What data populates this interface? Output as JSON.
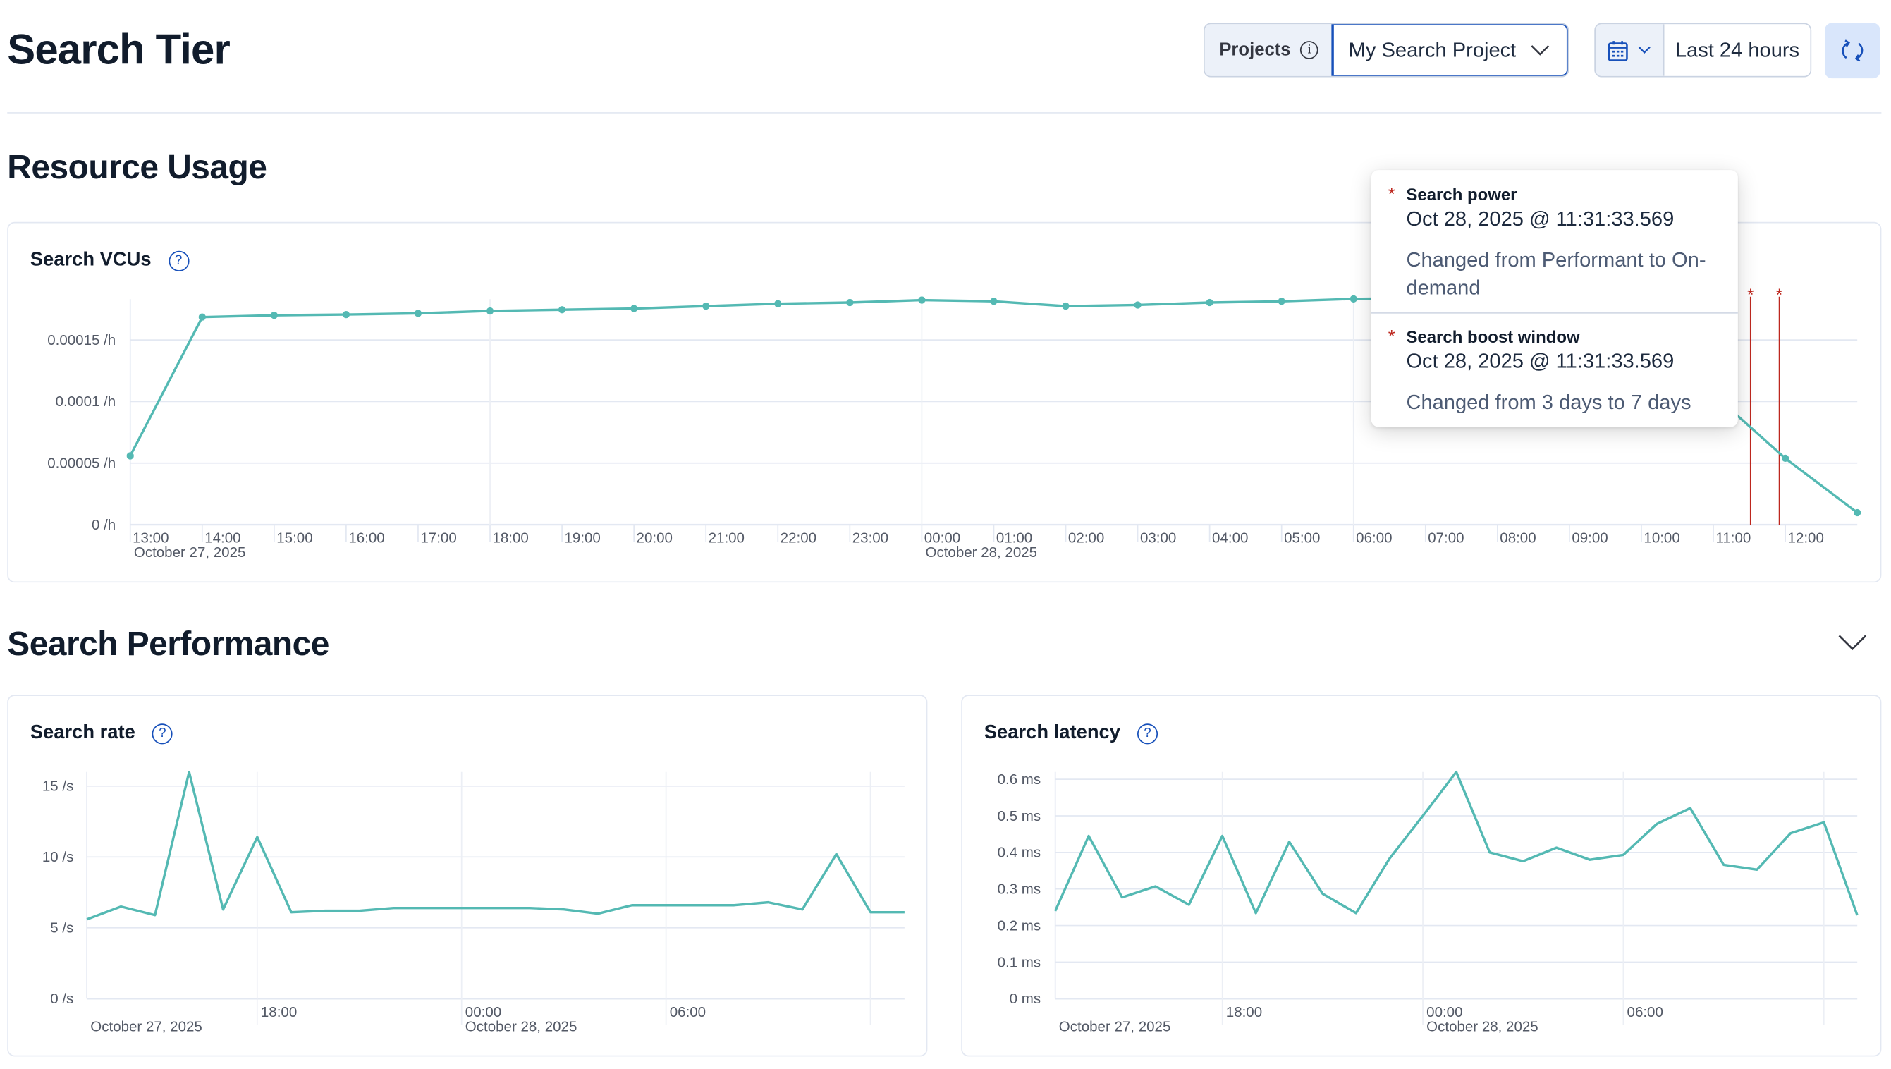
{
  "header": {
    "title": "Search Tier",
    "projects_label": "Projects",
    "project_select_value": "My Search Project",
    "time_range": "Last 24 hours",
    "icons": {
      "info": "info-icon",
      "chevron": "chevron-down-icon",
      "calendar": "calendar-icon",
      "refresh": "refresh-icon"
    }
  },
  "resource_usage": {
    "title": "Resource Usage",
    "panel_title": "Search VCUs"
  },
  "search_performance": {
    "title": "Search Performance",
    "rate_title": "Search rate",
    "latency_title": "Search latency"
  },
  "tooltip": {
    "items": [
      {
        "marker": "*",
        "name": "Search power",
        "time": "Oct 28, 2025 @ 11:31:33.569",
        "description": "Changed from Performant to On-demand"
      },
      {
        "marker": "*",
        "name": "Search boost window",
        "time": "Oct 28, 2025 @ 11:31:33.569",
        "description": "Changed from 3 days to 7 days"
      }
    ]
  },
  "colors": {
    "series": "#54b9b3",
    "annotation": "#bd271e",
    "accent": "#1750ba",
    "grid": "#e3e8f2"
  },
  "chart_data": [
    {
      "type": "line",
      "title": "Search VCUs",
      "x": [
        "13:00",
        "14:00",
        "15:00",
        "16:00",
        "17:00",
        "18:00",
        "19:00",
        "20:00",
        "21:00",
        "22:00",
        "23:00",
        "00:00",
        "01:00",
        "02:00",
        "03:00",
        "04:00",
        "05:00",
        "06:00",
        "07:00",
        "08:00",
        "09:00",
        "10:00",
        "11:00",
        "12:00",
        "13:00"
      ],
      "y": [
        5.59e-05,
        0.0001686,
        0.00017,
        0.0001706,
        0.0001716,
        0.0001735,
        0.0001745,
        0.0001755,
        0.0001775,
        0.0001794,
        0.0001804,
        0.0001824,
        0.0001814,
        0.0001775,
        0.0001784,
        0.0001804,
        0.0001814,
        0.0001833,
        0.000184,
        0.000185,
        0.000186,
        0.000186,
        0.000106,
        5.39e-05,
        9.8e-06
      ],
      "markers": true,
      "x_tick_labels": [
        "13:00",
        "14:00",
        "15:00",
        "16:00",
        "17:00",
        "18:00",
        "19:00",
        "20:00",
        "21:00",
        "22:00",
        "23:00",
        "00:00",
        "01:00",
        "02:00",
        "03:00",
        "04:00",
        "05:00",
        "06:00",
        "07:00",
        "08:00",
        "09:00",
        "10:00",
        "11:00",
        "12:00"
      ],
      "date_labels": [
        {
          "at": "13:00",
          "text": "October 27, 2025"
        },
        {
          "at": "00:00",
          "text": "October 28, 2025"
        }
      ],
      "y_ticks": [
        {
          "value": 0,
          "label": "0 /h"
        },
        {
          "value": 5e-05,
          "label": "0.00005 /h"
        },
        {
          "value": 0.0001,
          "label": "0.0001 /h"
        },
        {
          "value": 0.00015,
          "label": "0.00015 /h"
        }
      ],
      "ylim": [
        0,
        0.00019
      ],
      "annotations": [
        {
          "time": "11:31",
          "marker": "*"
        },
        {
          "time": "11:55",
          "marker": "*"
        }
      ],
      "grid": true
    },
    {
      "type": "line",
      "title": "Search rate",
      "x": [
        "13:00",
        "14:00",
        "15:00",
        "16:00",
        "17:00",
        "18:00",
        "19:00",
        "20:00",
        "21:00",
        "22:00",
        "23:00",
        "00:00",
        "01:00",
        "02:00",
        "03:00",
        "04:00",
        "05:00",
        "06:00",
        "07:00",
        "08:00",
        "09:00",
        "10:00",
        "11:00",
        "12:00",
        "13:00"
      ],
      "y": [
        5.6,
        6.5,
        5.9,
        16.0,
        6.3,
        11.4,
        6.1,
        6.2,
        6.2,
        6.4,
        6.4,
        6.4,
        6.4,
        6.4,
        6.3,
        6.0,
        6.6,
        6.6,
        6.6,
        6.6,
        6.8,
        6.3,
        10.2,
        6.1,
        6.1
      ],
      "markers": false,
      "x_tick_labels": [
        "18:00",
        "00:00",
        "06:00"
      ],
      "date_labels": [
        {
          "at": "13:00",
          "text": "October 27, 2025"
        },
        {
          "at": "00:00",
          "text": "October 28, 2025"
        }
      ],
      "y_ticks": [
        {
          "value": 0,
          "label": "0 /s"
        },
        {
          "value": 5,
          "label": "5 /s"
        },
        {
          "value": 10,
          "label": "10 /s"
        },
        {
          "value": 15,
          "label": "15 /s"
        }
      ],
      "ylim": [
        0,
        16
      ],
      "grid": true
    },
    {
      "type": "line",
      "title": "Search latency",
      "x": [
        "13:00",
        "14:00",
        "15:00",
        "16:00",
        "17:00",
        "18:00",
        "19:00",
        "20:00",
        "21:00",
        "22:00",
        "23:00",
        "00:00",
        "01:00",
        "02:00",
        "03:00",
        "04:00",
        "05:00",
        "06:00",
        "07:00",
        "08:00",
        "09:00",
        "10:00",
        "11:00",
        "12:00",
        "13:00"
      ],
      "y": [
        0.24,
        0.445,
        0.277,
        0.307,
        0.257,
        0.445,
        0.234,
        0.429,
        0.287,
        0.234,
        0.383,
        0.5,
        0.62,
        0.4,
        0.376,
        0.413,
        0.38,
        0.393,
        0.478,
        0.521,
        0.366,
        0.353,
        0.452,
        0.482,
        0.228
      ],
      "markers": false,
      "x_tick_labels": [
        "18:00",
        "00:00",
        "06:00"
      ],
      "date_labels": [
        {
          "at": "13:00",
          "text": "October 27, 2025"
        },
        {
          "at": "00:00",
          "text": "October 28, 2025"
        }
      ],
      "y_ticks": [
        {
          "value": 0,
          "label": "0 ms"
        },
        {
          "value": 0.1,
          "label": "0.1 ms"
        },
        {
          "value": 0.2,
          "label": "0.2 ms"
        },
        {
          "value": 0.3,
          "label": "0.3 ms"
        },
        {
          "value": 0.4,
          "label": "0.4 ms"
        },
        {
          "value": 0.5,
          "label": "0.5 ms"
        },
        {
          "value": 0.6,
          "label": "0.6 ms"
        }
      ],
      "ylim": [
        0,
        0.62
      ],
      "grid": true
    }
  ]
}
